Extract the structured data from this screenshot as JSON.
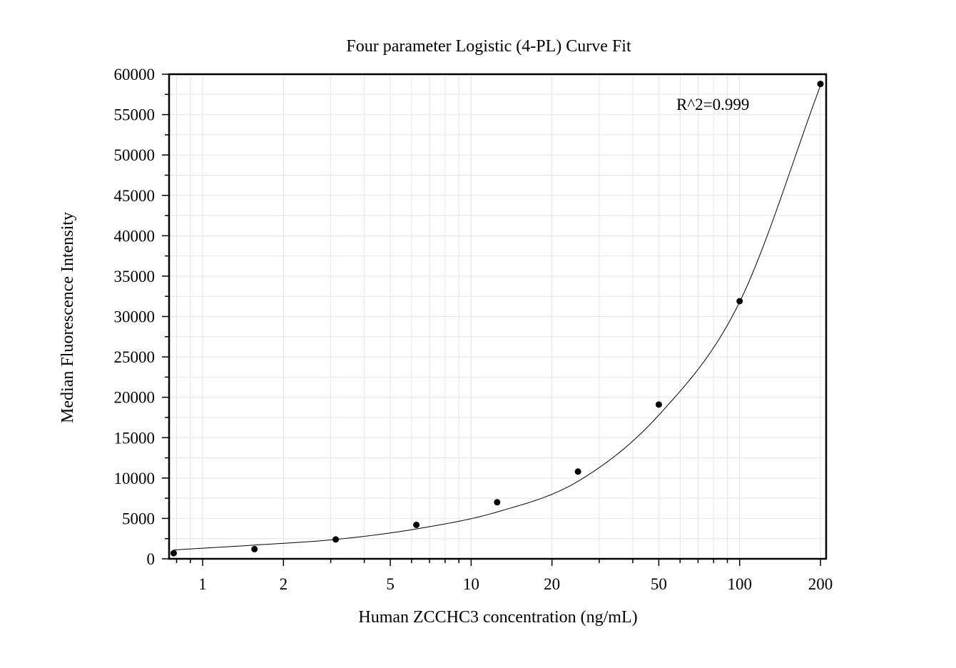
{
  "chart_data": {
    "type": "scatter",
    "title": "Four parameter Logistic (4-PL) Curve Fit",
    "xlabel": "Human ZCCHC3 concentration (ng/mL)",
    "ylabel": "Median Fluorescence Intensity",
    "xscale": "log",
    "xlim": [
      0.75,
      210
    ],
    "ylim": [
      0,
      60000
    ],
    "grid": true,
    "legend": "none",
    "annotation": "R^2=0.999",
    "x_ticks": [
      1,
      2,
      5,
      10,
      20,
      50,
      100,
      200
    ],
    "x_tick_labels": [
      "1",
      "2",
      "5",
      "10",
      "20",
      "50",
      "100",
      "200"
    ],
    "y_ticks": [
      0,
      5000,
      10000,
      15000,
      20000,
      25000,
      30000,
      35000,
      40000,
      45000,
      50000,
      55000,
      60000
    ],
    "y_tick_labels": [
      "0",
      "5000",
      "10000",
      "15000",
      "20000",
      "25000",
      "30000",
      "35000",
      "40000",
      "45000",
      "50000",
      "55000",
      "60000"
    ],
    "points": {
      "x": [
        0.78,
        1.56,
        3.13,
        6.25,
        12.5,
        25,
        50,
        100,
        200
      ],
      "y": [
        700,
        1200,
        2400,
        4200,
        7000,
        10800,
        19100,
        31900,
        58800
      ]
    },
    "fit_curve": {
      "x": [
        0.78,
        1.56,
        3.13,
        6.25,
        12.5,
        25,
        50,
        100,
        200
      ],
      "y": [
        1100,
        1700,
        2400,
        3700,
        5800,
        9600,
        17800,
        31800,
        58600
      ]
    },
    "colors": {
      "points": "#000000",
      "curve": "#000000",
      "grid": "#e6e6e6",
      "axes": "#000000"
    }
  }
}
